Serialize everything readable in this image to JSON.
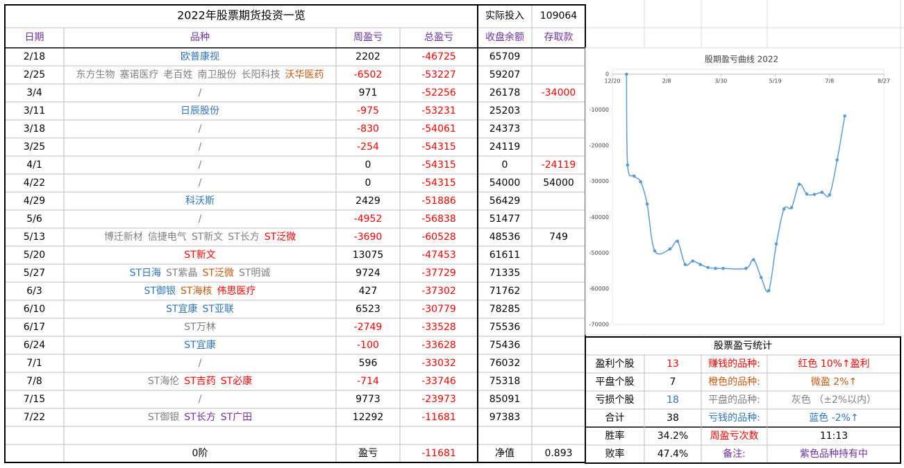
{
  "table": {
    "title": "2022年股票期货投资一览",
    "invested_label": "实际投入",
    "invested": 109064,
    "negative_color": "#ff0000",
    "text_color": "#000000",
    "header_color": "#7030a0",
    "columns": [
      "日期",
      "品种",
      "周盈亏",
      "总盈亏",
      "收盘余额",
      "存取款"
    ],
    "rows": [
      {
        "date": "2/18",
        "items": [
          {
            "name": "欧普康视",
            "color": "#2e75b6"
          }
        ],
        "weekly": 2202,
        "total": -46725,
        "balance": 65709,
        "transfer": null
      },
      {
        "date": "2/25",
        "items": [
          {
            "name": "东方生物",
            "color": "#808080"
          },
          {
            "name": "塞诺医疗",
            "color": "#808080"
          },
          {
            "name": "老百姓",
            "color": "#808080"
          },
          {
            "name": "南卫股份",
            "color": "#808080"
          },
          {
            "name": "长阳科技",
            "color": "#808080"
          },
          {
            "name": "沃华医药",
            "color": "#c65911"
          }
        ],
        "weekly": -6502,
        "total": -53227,
        "balance": 59207,
        "transfer": null
      },
      {
        "date": "3/4",
        "items": [
          {
            "name": "/",
            "color": "#808080"
          }
        ],
        "weekly": 971,
        "total": -52256,
        "balance": 26178,
        "transfer": -34000
      },
      {
        "date": "3/11",
        "items": [
          {
            "name": "日辰股份",
            "color": "#2e75b6"
          }
        ],
        "weekly": -975,
        "total": -53231,
        "balance": 25203,
        "transfer": null
      },
      {
        "date": "3/18",
        "items": [
          {
            "name": "/",
            "color": "#808080"
          }
        ],
        "weekly": -830,
        "total": -54061,
        "balance": 24373,
        "transfer": null
      },
      {
        "date": "3/25",
        "items": [
          {
            "name": "/",
            "color": "#808080"
          }
        ],
        "weekly": -254,
        "total": -54315,
        "balance": 24119,
        "transfer": null
      },
      {
        "date": "4/1",
        "items": [
          {
            "name": "/",
            "color": "#808080"
          }
        ],
        "weekly": 0,
        "total": -54315,
        "balance": 0,
        "transfer": -24119
      },
      {
        "date": "4/22",
        "items": [
          {
            "name": "/",
            "color": "#808080"
          }
        ],
        "weekly": 0,
        "total": -54315,
        "balance": 54000,
        "transfer": 54000
      },
      {
        "date": "4/29",
        "items": [
          {
            "name": "科沃斯",
            "color": "#2e75b6"
          }
        ],
        "weekly": 2429,
        "total": -51886,
        "balance": 56429,
        "transfer": null
      },
      {
        "date": "5/6",
        "items": [
          {
            "name": "/",
            "color": "#808080"
          }
        ],
        "weekly": -4952,
        "total": -56838,
        "balance": 51477,
        "transfer": null
      },
      {
        "date": "5/13",
        "items": [
          {
            "name": "博迁新材",
            "color": "#808080"
          },
          {
            "name": "信捷电气",
            "color": "#808080"
          },
          {
            "name": "ST新文",
            "color": "#808080"
          },
          {
            "name": "ST长方",
            "color": "#808080"
          },
          {
            "name": "ST泛微",
            "color": "#ff0000"
          }
        ],
        "weekly": -3690,
        "total": -60528,
        "balance": 48536,
        "transfer": 749
      },
      {
        "date": "5/20",
        "items": [
          {
            "name": "ST新文",
            "color": "#ff0000"
          }
        ],
        "weekly": 13075,
        "total": -47453,
        "balance": 61611,
        "transfer": null
      },
      {
        "date": "5/27",
        "items": [
          {
            "name": "ST日海",
            "color": "#2e75b6"
          },
          {
            "name": "ST紫晶",
            "color": "#808080"
          },
          {
            "name": "ST泛微",
            "color": "#c65911"
          },
          {
            "name": "ST明诚",
            "color": "#808080"
          }
        ],
        "weekly": 9724,
        "total": -37729,
        "balance": 71335,
        "transfer": null
      },
      {
        "date": "6/3",
        "items": [
          {
            "name": "ST御银",
            "color": "#2e75b6"
          },
          {
            "name": "ST海核",
            "color": "#c65911"
          },
          {
            "name": "伟思医疗",
            "color": "#ff0000"
          }
        ],
        "weekly": 427,
        "total": -37302,
        "balance": 71762,
        "transfer": null
      },
      {
        "date": "6/10",
        "items": [
          {
            "name": "ST宜康",
            "color": "#2e75b6"
          },
          {
            "name": "ST亚联",
            "color": "#2e75b6"
          }
        ],
        "weekly": 6523,
        "total": -30779,
        "balance": 78285,
        "transfer": null
      },
      {
        "date": "6/17",
        "items": [
          {
            "name": "ST万林",
            "color": "#808080"
          }
        ],
        "weekly": -2749,
        "total": -33528,
        "balance": 75536,
        "transfer": null
      },
      {
        "date": "6/24",
        "items": [
          {
            "name": "ST宜康",
            "color": "#2e75b6"
          }
        ],
        "weekly": -100,
        "total": -33628,
        "balance": 75436,
        "transfer": null
      },
      {
        "date": "7/1",
        "items": [
          {
            "name": "/",
            "color": "#808080"
          }
        ],
        "weekly": 596,
        "total": -33032,
        "balance": 76032,
        "transfer": null
      },
      {
        "date": "7/8",
        "items": [
          {
            "name": "ST海伦",
            "color": "#808080"
          },
          {
            "name": "ST吉药",
            "color": "#ff0000"
          },
          {
            "name": "ST必康",
            "color": "#ff0000"
          }
        ],
        "weekly": -714,
        "total": -33746,
        "balance": 75318,
        "transfer": null
      },
      {
        "date": "7/15",
        "items": [
          {
            "name": "/",
            "color": "#808080"
          }
        ],
        "weekly": 9773,
        "total": -23973,
        "balance": 85091,
        "transfer": null
      },
      {
        "date": "7/22",
        "items": [
          {
            "name": "ST御银",
            "color": "#808080"
          },
          {
            "name": "ST长方",
            "color": "#7030a0"
          },
          {
            "name": "ST广田",
            "color": "#7030a0"
          }
        ],
        "weekly": 12292,
        "total": -11681,
        "balance": 97383,
        "transfer": null
      }
    ],
    "footer": {
      "label": "0阶",
      "pl_label": "盈亏",
      "pl": -11681,
      "nav_label": "净值",
      "nav": 0.893
    }
  },
  "stats": {
    "title": "股票盈亏统计",
    "rows": [
      [
        {
          "text": "盈利个股",
          "color": "#000000"
        },
        {
          "text": "13",
          "color": "#ff0000"
        },
        {
          "text": "赚钱的品种:",
          "color": "#ff0000"
        },
        {
          "text": "红色 10%↑盈利",
          "color": "#ff0000"
        }
      ],
      [
        {
          "text": "平盘个股",
          "color": "#000000"
        },
        {
          "text": "7",
          "color": "#000000"
        },
        {
          "text": "橙色的品种:",
          "color": "#c65911"
        },
        {
          "text": "微盈 2%↑",
          "color": "#c65911"
        }
      ],
      [
        {
          "text": "亏损个股",
          "color": "#000000"
        },
        {
          "text": "18",
          "color": "#2e75b6"
        },
        {
          "text": "平盘的品种:",
          "color": "#808080"
        },
        {
          "text": "灰色 （±2%以内）",
          "color": "#808080"
        }
      ],
      [
        {
          "text": "合计",
          "color": "#000000"
        },
        {
          "text": "38",
          "color": "#000000"
        },
        {
          "text": "亏钱的品种:",
          "color": "#2e75b6"
        },
        {
          "text": "蓝色 -2%↑",
          "color": "#2e75b6"
        }
      ],
      [
        {
          "text": "胜率",
          "color": "#000000"
        },
        {
          "text": "34.2%",
          "color": "#000000"
        },
        {
          "text": "周盈亏次数",
          "color": "#ff0000"
        },
        {
          "text": "11:13",
          "color": "#000000"
        }
      ],
      [
        {
          "text": "败率",
          "color": "#000000"
        },
        {
          "text": "47.4%",
          "color": "#000000"
        },
        {
          "text": "备注:",
          "color": "#7030a0"
        },
        {
          "text": "紫色品种持有中",
          "color": "#7030a0"
        }
      ]
    ]
  },
  "chart_data": {
    "type": "line",
    "title": "股期盈亏曲线 2022",
    "x": [
      44563,
      44564,
      44570,
      44576,
      44582,
      44589,
      44603,
      44610,
      44617,
      44624,
      44631,
      44638,
      44645,
      44652,
      44673,
      44680,
      44687,
      44694,
      44701,
      44708,
      44715,
      44722,
      44729,
      44736,
      44743,
      44750,
      44757,
      44764
    ],
    "series": [
      {
        "color": "#5b9bd5",
        "values": [
          0,
          -25400,
          -28500,
          -30100,
          -36300,
          -49400,
          -48900,
          -46725,
          -53227,
          -52256,
          -53231,
          -54061,
          -54315,
          -54315,
          -54315,
          -51886,
          -56838,
          -60528,
          -47453,
          -37729,
          -37302,
          -30779,
          -33528,
          -33628,
          -33032,
          -33746,
          -23973,
          -11681
        ]
      }
    ],
    "xlim": [
      44550,
      44800
    ],
    "xticks": [
      {
        "value": 44550,
        "label": "12/20"
      },
      {
        "value": 44600,
        "label": "2/8"
      },
      {
        "value": 44650,
        "label": "3/30"
      },
      {
        "value": 44700,
        "label": "5/19"
      },
      {
        "value": 44750,
        "label": "7/8"
      },
      {
        "value": 44800,
        "label": "8/27"
      }
    ],
    "ylim": [
      -70000,
      0
    ],
    "yticks": [
      0,
      -10000,
      -20000,
      -30000,
      -40000,
      -50000,
      -60000,
      -70000
    ],
    "grid": false,
    "smooth": true
  }
}
